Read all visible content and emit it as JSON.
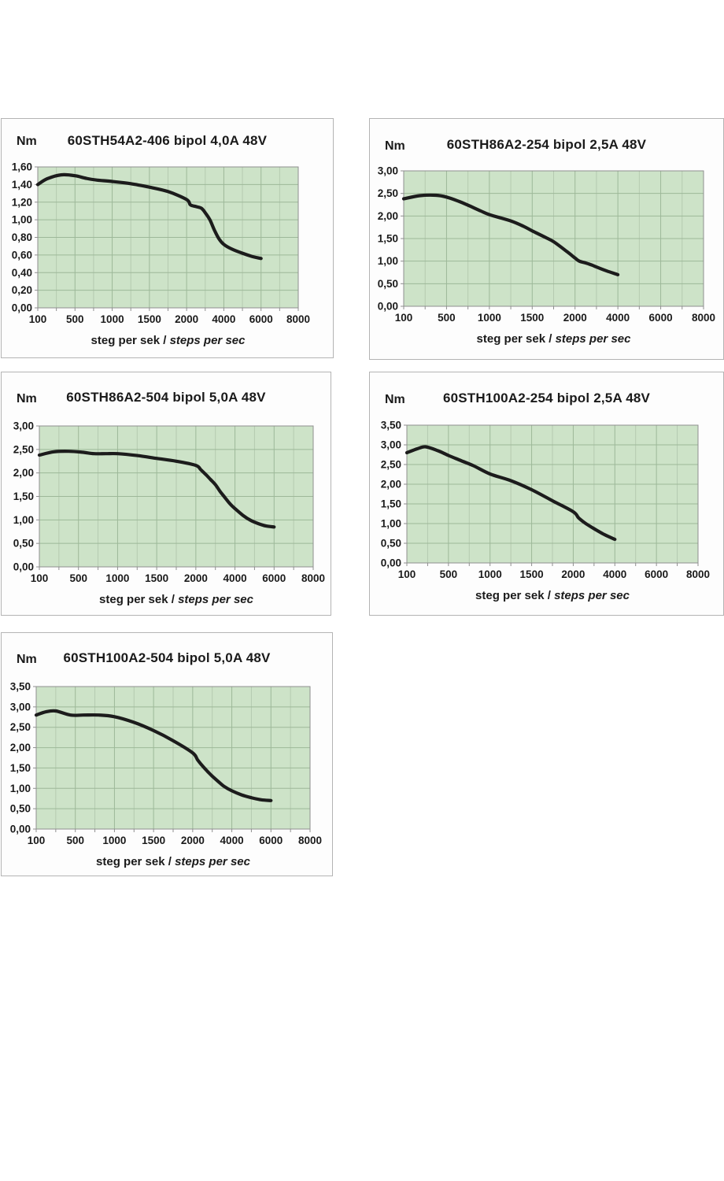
{
  "colors": {
    "page_bg": "#ffffff",
    "panel_bg": "#fdfdfd",
    "panel_border": "#b4b4b4",
    "plot_bg": "#cde3c8",
    "grid_major": "#9db899",
    "grid_minor": "#b5cab0",
    "axis": "#8f8f8f",
    "curve": "#1c1c1c",
    "text": "#1a1a1a"
  },
  "chart_data": [
    {
      "type": "line",
      "title": "60STH54A2-406 bipol 4,0A 48V",
      "ylabel": "Nm",
      "xlabel": "steg per sek / steps per sec",
      "xlabel_regular": "steg per sek /",
      "xlabel_italic": "steps per sec",
      "x_tick_values": [
        100,
        500,
        1000,
        1500,
        2000,
        4000,
        6000,
        8000
      ],
      "x_tick_labels": [
        "100",
        "500",
        "1000",
        "1500",
        "2000",
        "4000",
        "6000",
        "8000"
      ],
      "ylim": [
        0,
        1.6
      ],
      "y_step": 0.2,
      "y_tick_labels": [
        "1,60",
        "1,40",
        "1,20",
        "1,00",
        "0,80",
        "0,60",
        "0,40",
        "0,20",
        "0,00"
      ],
      "grid": true,
      "legend": "none",
      "points": [
        [
          100,
          1.4
        ],
        [
          200,
          1.465
        ],
        [
          350,
          1.51
        ],
        [
          500,
          1.5
        ],
        [
          650,
          1.47
        ],
        [
          800,
          1.45
        ],
        [
          1000,
          1.435
        ],
        [
          1250,
          1.41
        ],
        [
          1500,
          1.37
        ],
        [
          1750,
          1.32
        ],
        [
          2000,
          1.23
        ],
        [
          2200,
          1.17
        ],
        [
          2500,
          1.15
        ],
        [
          2800,
          1.13
        ],
        [
          3000,
          1.08
        ],
        [
          3250,
          1.0
        ],
        [
          3500,
          0.88
        ],
        [
          3750,
          0.78
        ],
        [
          4000,
          0.72
        ],
        [
          4400,
          0.67
        ],
        [
          5000,
          0.62
        ],
        [
          5500,
          0.585
        ],
        [
          6000,
          0.56
        ]
      ]
    },
    {
      "type": "line",
      "title": "60STH86A2-254 bipol 2,5A 48V",
      "ylabel": "Nm",
      "xlabel": "steg per sek / steps per sec",
      "xlabel_regular": "steg per sek /",
      "xlabel_italic": "steps per sec",
      "x_tick_values": [
        100,
        500,
        1000,
        1500,
        2000,
        4000,
        6000,
        8000
      ],
      "x_tick_labels": [
        "100",
        "500",
        "1000",
        "1500",
        "2000",
        "4000",
        "6000",
        "8000"
      ],
      "ylim": [
        0,
        3.0
      ],
      "y_step": 0.5,
      "y_tick_labels": [
        "3,00",
        "2,50",
        "2,00",
        "1,50",
        "1,00",
        "0,50",
        "0,00"
      ],
      "grid": true,
      "legend": "none",
      "points": [
        [
          100,
          2.38
        ],
        [
          250,
          2.45
        ],
        [
          400,
          2.46
        ],
        [
          500,
          2.42
        ],
        [
          650,
          2.32
        ],
        [
          750,
          2.24
        ],
        [
          900,
          2.11
        ],
        [
          1000,
          2.03
        ],
        [
          1250,
          1.89
        ],
        [
          1400,
          1.77
        ],
        [
          1500,
          1.67
        ],
        [
          1650,
          1.53
        ],
        [
          1750,
          1.43
        ],
        [
          1900,
          1.22
        ],
        [
          2000,
          1.07
        ],
        [
          2200,
          1.0
        ],
        [
          2500,
          0.96
        ],
        [
          2800,
          0.91
        ],
        [
          3000,
          0.87
        ],
        [
          3500,
          0.78
        ],
        [
          4000,
          0.7
        ]
      ]
    },
    {
      "type": "line",
      "title": "60STH86A2-504 bipol 5,0A 48V",
      "ylabel": "Nm",
      "xlabel": "steg per sek / steps per sec",
      "xlabel_regular": "steg per sek /",
      "xlabel_italic": "steps per sec",
      "x_tick_values": [
        100,
        500,
        1000,
        1500,
        2000,
        4000,
        6000,
        8000
      ],
      "x_tick_labels": [
        "100",
        "500",
        "1000",
        "1500",
        "2000",
        "4000",
        "6000",
        "8000"
      ],
      "ylim": [
        0,
        3.0
      ],
      "y_step": 0.5,
      "y_tick_labels": [
        "3,00",
        "2,50",
        "2,00",
        "1,50",
        "1,00",
        "0,50",
        "0,00"
      ],
      "grid": true,
      "legend": "none",
      "points": [
        [
          100,
          2.38
        ],
        [
          250,
          2.45
        ],
        [
          400,
          2.46
        ],
        [
          550,
          2.44
        ],
        [
          700,
          2.41
        ],
        [
          850,
          2.41
        ],
        [
          1000,
          2.41
        ],
        [
          1250,
          2.37
        ],
        [
          1500,
          2.31
        ],
        [
          1750,
          2.25
        ],
        [
          2000,
          2.16
        ],
        [
          2250,
          2.07
        ],
        [
          2500,
          1.97
        ],
        [
          2750,
          1.86
        ],
        [
          3000,
          1.75
        ],
        [
          3250,
          1.6
        ],
        [
          3500,
          1.47
        ],
        [
          3750,
          1.34
        ],
        [
          4000,
          1.24
        ],
        [
          4400,
          1.1
        ],
        [
          4800,
          0.99
        ],
        [
          5200,
          0.92
        ],
        [
          5600,
          0.87
        ],
        [
          6000,
          0.85
        ]
      ]
    },
    {
      "type": "line",
      "title": "60STH100A2-254 bipol 2,5A 48V",
      "ylabel": "Nm",
      "xlabel": "steg per sek / steps per sec",
      "xlabel_regular": "steg per sek /",
      "xlabel_italic": "steps per sec",
      "x_tick_values": [
        100,
        500,
        1000,
        1500,
        2000,
        4000,
        6000,
        8000
      ],
      "x_tick_labels": [
        "100",
        "500",
        "1000",
        "1500",
        "2000",
        "4000",
        "6000",
        "8000"
      ],
      "ylim": [
        0,
        3.5
      ],
      "y_step": 0.5,
      "y_tick_labels": [
        "3,50",
        "3,00",
        "2,50",
        "2,00",
        "1,50",
        "1,00",
        "0,50",
        "0,00"
      ],
      "grid": true,
      "legend": "none",
      "points": [
        [
          100,
          2.8
        ],
        [
          200,
          2.9
        ],
        [
          280,
          2.95
        ],
        [
          400,
          2.85
        ],
        [
          500,
          2.73
        ],
        [
          650,
          2.6
        ],
        [
          800,
          2.47
        ],
        [
          1000,
          2.26
        ],
        [
          1250,
          2.09
        ],
        [
          1500,
          1.86
        ],
        [
          1750,
          1.58
        ],
        [
          2000,
          1.3
        ],
        [
          2250,
          1.15
        ],
        [
          2500,
          1.04
        ],
        [
          2750,
          0.95
        ],
        [
          3000,
          0.87
        ],
        [
          3500,
          0.72
        ],
        [
          4000,
          0.6
        ]
      ]
    },
    {
      "type": "line",
      "title": "60STH100A2-504 bipol 5,0A 48V",
      "ylabel": "Nm",
      "xlabel": "steg per sek / steps per sec",
      "xlabel_regular": "steg per sek /",
      "xlabel_italic": "steps per sec",
      "x_tick_values": [
        100,
        500,
        1000,
        1500,
        2000,
        4000,
        6000,
        8000
      ],
      "x_tick_labels": [
        "100",
        "500",
        "1000",
        "1500",
        "2000",
        "4000",
        "6000",
        "8000"
      ],
      "ylim": [
        0,
        3.5
      ],
      "y_step": 0.5,
      "y_tick_labels": [
        "3,50",
        "3,00",
        "2,50",
        "2,00",
        "1,50",
        "1,00",
        "0,50",
        "0,00"
      ],
      "grid": true,
      "legend": "none",
      "points": [
        [
          100,
          2.8
        ],
        [
          200,
          2.88
        ],
        [
          300,
          2.9
        ],
        [
          450,
          2.8
        ],
        [
          600,
          2.8
        ],
        [
          800,
          2.8
        ],
        [
          1000,
          2.76
        ],
        [
          1250,
          2.62
        ],
        [
          1500,
          2.42
        ],
        [
          1750,
          2.17
        ],
        [
          2000,
          1.87
        ],
        [
          2250,
          1.7
        ],
        [
          2500,
          1.55
        ],
        [
          2750,
          1.42
        ],
        [
          3000,
          1.3
        ],
        [
          3300,
          1.17
        ],
        [
          3600,
          1.05
        ],
        [
          4000,
          0.94
        ],
        [
          4500,
          0.84
        ],
        [
          5000,
          0.77
        ],
        [
          5500,
          0.72
        ],
        [
          6000,
          0.7
        ]
      ]
    }
  ]
}
